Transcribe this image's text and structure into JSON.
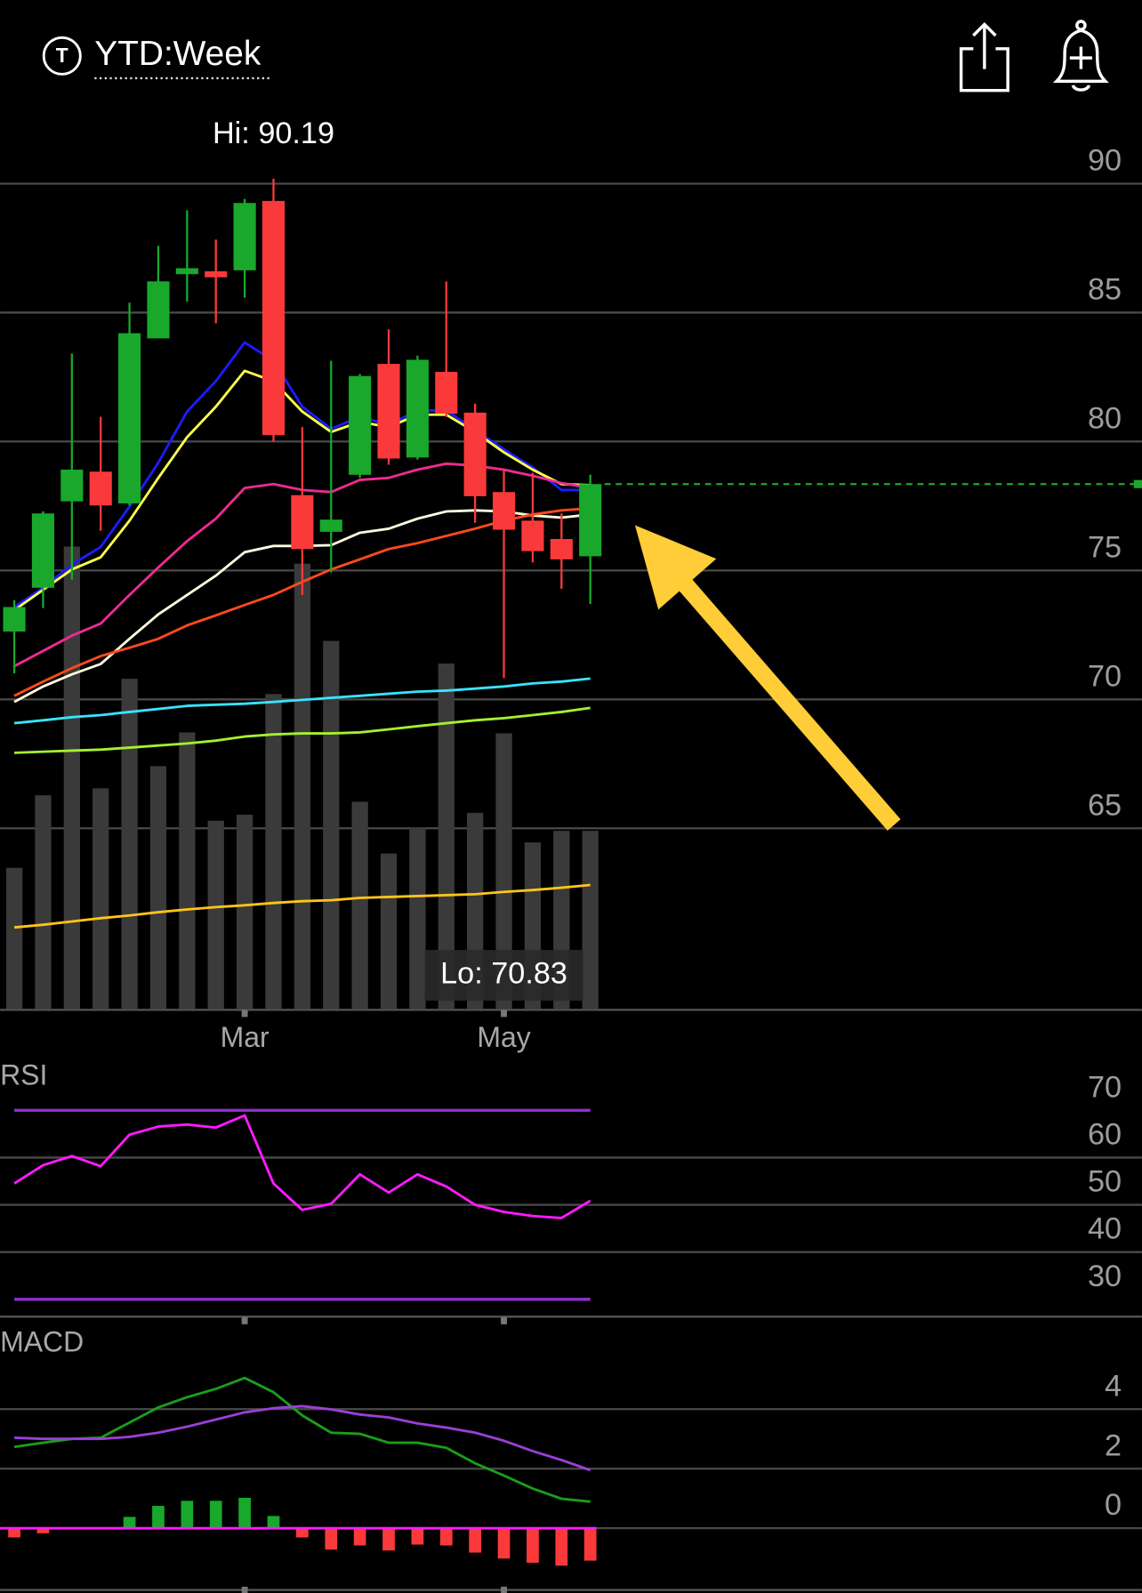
{
  "header": {
    "icon_letter": "T",
    "title": "YTD:Week"
  },
  "chart_data": [
    {
      "type": "candlestick",
      "categories": [
        null,
        null,
        null,
        null,
        null,
        null,
        null,
        null,
        "Mar",
        null,
        null,
        null,
        null,
        null,
        null,
        null,
        null,
        "May",
        null,
        null,
        null
      ],
      "open": [
        72.63,
        74.33,
        77.68,
        78.83,
        77.6,
        84.0,
        86.49,
        86.6,
        86.64,
        89.33,
        77.92,
        76.5,
        78.71,
        83.01,
        79.38,
        82.7,
        81.12,
        78.04,
        76.93,
        76.22,
        75.55
      ],
      "high": [
        73.85,
        77.29,
        83.41,
        80.96,
        85.38,
        87.59,
        88.97,
        87.83,
        89.41,
        90.19,
        80.56,
        83.13,
        82.62,
        84.35,
        83.33,
        86.21,
        81.47,
        78.91,
        78.79,
        77.21,
        78.71
      ],
      "low": [
        71.01,
        73.54,
        74.64,
        76.54,
        77.52,
        84.0,
        85.42,
        84.59,
        85.58,
        80.0,
        74.05,
        74.92,
        78.59,
        79.1,
        79.3,
        80.96,
        76.85,
        70.83,
        75.31,
        74.29,
        73.7
      ],
      "close": [
        73.58,
        77.21,
        78.91,
        77.52,
        84.2,
        86.21,
        86.72,
        86.37,
        89.25,
        80.25,
        75.83,
        76.97,
        82.54,
        79.34,
        83.17,
        81.08,
        77.88,
        76.58,
        75.75,
        75.43,
        78.35
      ],
      "up_color": "#19a82c",
      "down_color": "#fa3a3a",
      "ylim": [
        58,
        92
      ],
      "yticks": [
        65,
        70,
        75,
        80,
        85,
        90
      ],
      "grid": true,
      "hi_label": "Hi: 90.19",
      "lo_label": "Lo: 70.83",
      "last_price": 78.35,
      "last_price_color": "#19a82c",
      "series": [
        {
          "color": "#1c1cff",
          "values": [
            73.58,
            74.33,
            75.23,
            75.91,
            77.48,
            79.18,
            81.16,
            82.34,
            83.84,
            83.13,
            81.35,
            80.49,
            80.96,
            80.64,
            81.2,
            81.2,
            80.45,
            79.7,
            78.99,
            78.12,
            78.12
          ]
        },
        {
          "color": "#ffff4d",
          "values": [
            73.46,
            74.25,
            75.04,
            75.51,
            76.93,
            78.59,
            80.17,
            81.35,
            82.74,
            82.34,
            81.16,
            80.37,
            80.76,
            80.56,
            81.04,
            81.04,
            80.37,
            79.58,
            78.91,
            78.35,
            78.31
          ]
        },
        {
          "color": "#ee2a92",
          "values": [
            71.29,
            71.88,
            72.47,
            72.94,
            74.05,
            75.12,
            76.14,
            77.01,
            78.2,
            78.35,
            78.12,
            78.04,
            78.51,
            78.59,
            78.91,
            79.14,
            79.06,
            78.91,
            78.67,
            78.39,
            78.2
          ]
        },
        {
          "color": "#fffbe0",
          "values": [
            69.9,
            70.5,
            70.97,
            71.37,
            72.35,
            73.3,
            74.05,
            74.8,
            75.71,
            75.95,
            75.95,
            75.98,
            76.46,
            76.62,
            77.01,
            77.29,
            77.33,
            77.29,
            77.13,
            77.05,
            77.17
          ]
        },
        {
          "color": "#ff4a1c",
          "values": [
            70.14,
            70.69,
            71.21,
            71.68,
            72.0,
            72.35,
            72.87,
            73.26,
            73.66,
            74.05,
            74.56,
            75.04,
            75.43,
            75.83,
            76.06,
            76.34,
            76.62,
            76.93,
            77.17,
            77.33,
            77.41
          ]
        },
        {
          "color": "#38e4ff",
          "values": [
            69.08,
            69.19,
            69.31,
            69.39,
            69.51,
            69.63,
            69.75,
            69.79,
            69.83,
            69.9,
            69.98,
            70.06,
            70.14,
            70.22,
            70.3,
            70.34,
            70.42,
            70.5,
            70.62,
            70.69,
            70.81
          ]
        },
        {
          "color": "#a6f02e",
          "values": [
            67.93,
            67.97,
            68.01,
            68.05,
            68.13,
            68.21,
            68.29,
            68.4,
            68.56,
            68.64,
            68.68,
            68.68,
            68.72,
            68.84,
            68.96,
            69.08,
            69.19,
            69.27,
            69.39,
            69.51,
            69.67
          ]
        }
      ],
      "volume": {
        "color": "#3a3a3a",
        "ylim": [
          0,
          100
        ],
        "values": [
          30.5,
          46.2,
          100,
          47.7,
          71.4,
          52.5,
          59.8,
          40.7,
          42.0,
          68.1,
          96.3,
          79.6,
          44.8,
          33.6,
          39.3,
          74.7,
          42.4,
          59.6,
          36.0,
          38.5,
          38.5
        ],
        "ma_color": "#ffc51a",
        "ma_values": [
          17.6,
          18.2,
          18.9,
          19.6,
          20.2,
          20.9,
          21.5,
          22.0,
          22.4,
          22.9,
          23.3,
          23.5,
          24.0,
          24.2,
          24.4,
          24.6,
          24.8,
          25.3,
          25.7,
          26.2,
          26.8
        ]
      }
    },
    {
      "type": "line",
      "title": "RSI",
      "ylim": [
        26,
        80
      ],
      "yticks": [
        30,
        40,
        50,
        60,
        70
      ],
      "grid": true,
      "levels": [
        30,
        70
      ],
      "level_color": "#8e2fd0",
      "series": [
        {
          "color": "#ff1aff",
          "values": [
            54.52,
            58.39,
            60.32,
            58.17,
            64.84,
            66.56,
            66.99,
            66.34,
            68.92,
            54.52,
            48.92,
            50.22,
            56.45,
            52.58,
            56.45,
            53.87,
            50.0,
            48.5,
            47.63,
            47.2,
            50.86
          ]
        }
      ]
    },
    {
      "type": "line",
      "title": "MACD",
      "ylim": [
        -2,
        6.8
      ],
      "yticks": [
        0,
        2,
        4
      ],
      "grid": true,
      "zero_color": "#ff1aff",
      "series": [
        {
          "color": "#1a9e1a",
          "values": [
            2.73,
            2.87,
            3.0,
            3.04,
            3.55,
            4.06,
            4.4,
            4.68,
            5.05,
            4.57,
            3.79,
            3.21,
            3.17,
            2.87,
            2.87,
            2.7,
            2.18,
            1.77,
            1.33,
            0.99,
            0.89
          ]
        },
        {
          "color": "#9b3fd6",
          "values": [
            3.04,
            3.0,
            3.0,
            3.0,
            3.07,
            3.21,
            3.41,
            3.65,
            3.89,
            4.03,
            4.1,
            3.99,
            3.82,
            3.72,
            3.52,
            3.38,
            3.21,
            2.94,
            2.59,
            2.29,
            1.95
          ]
        }
      ],
      "histogram": {
        "up_color": "#19a82c",
        "down_color": "#fa3a3a",
        "values": [
          -0.31,
          -0.17,
          0,
          0,
          0.38,
          0.75,
          0.92,
          0.92,
          1.02,
          0.41,
          -0.31,
          -0.72,
          -0.58,
          -0.75,
          -0.55,
          -0.58,
          -0.82,
          -1.02,
          -1.16,
          -1.26,
          -1.09
        ]
      }
    }
  ]
}
